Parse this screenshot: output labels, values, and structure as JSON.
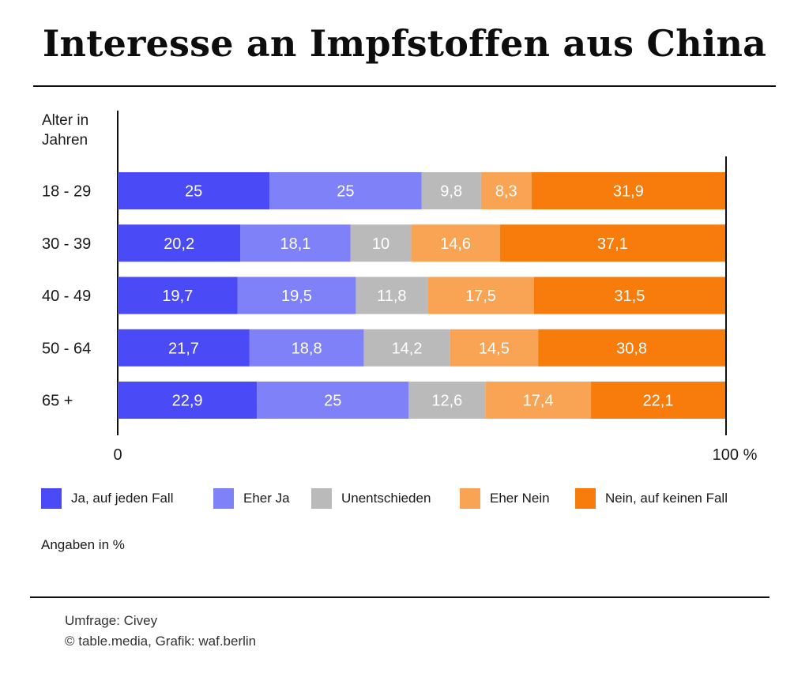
{
  "title": "Interesse an Impfstoffen aus China",
  "chart_data": {
    "type": "bar",
    "orientation": "horizontal",
    "stacked": true,
    "ylabel_lines": [
      "Alter in",
      "Jahren"
    ],
    "categories": [
      "18 - 29",
      "30 - 39",
      "40 - 49",
      "50 - 64",
      "65 +"
    ],
    "series": [
      {
        "name": "Ja, auf jeden Fall",
        "color": "#4a4af6",
        "values": [
          25,
          20.2,
          19.7,
          21.7,
          22.9
        ],
        "labels": [
          "25",
          "20,2",
          "19,7",
          "21,7",
          "22,9"
        ]
      },
      {
        "name": "Eher Ja",
        "color": "#7f81f8",
        "values": [
          25,
          18.1,
          19.5,
          18.8,
          25
        ],
        "labels": [
          "25",
          "18,1",
          "19,5",
          "18,8",
          "25"
        ]
      },
      {
        "name": "Unentschieden",
        "color": "#bbbaba",
        "values": [
          9.8,
          10,
          11.8,
          14.2,
          12.6
        ],
        "labels": [
          "9,8",
          "10",
          "11,8",
          "14,2",
          "12,6"
        ]
      },
      {
        "name": "Eher Nein",
        "color": "#f9a455",
        "values": [
          8.3,
          14.6,
          17.5,
          14.5,
          17.4
        ],
        "labels": [
          "8,3",
          "14,6",
          "17,5",
          "14,5",
          "17,4"
        ]
      },
      {
        "name": "Nein, auf keinen Fall",
        "color": "#f77c0b",
        "values": [
          31.9,
          37.1,
          31.5,
          30.8,
          22.1
        ],
        "labels": [
          "31,9",
          "37,1",
          "31,5",
          "30,8",
          "22,1"
        ]
      }
    ],
    "xlim": [
      0,
      100
    ],
    "xtick_labels": [
      "0",
      "100 %"
    ],
    "legend_position": "bottom",
    "grid": false
  },
  "note": "Angaben in %",
  "source_lines": [
    "Umfrage: Civey",
    "© table.media, Grafik: waf.berlin"
  ]
}
